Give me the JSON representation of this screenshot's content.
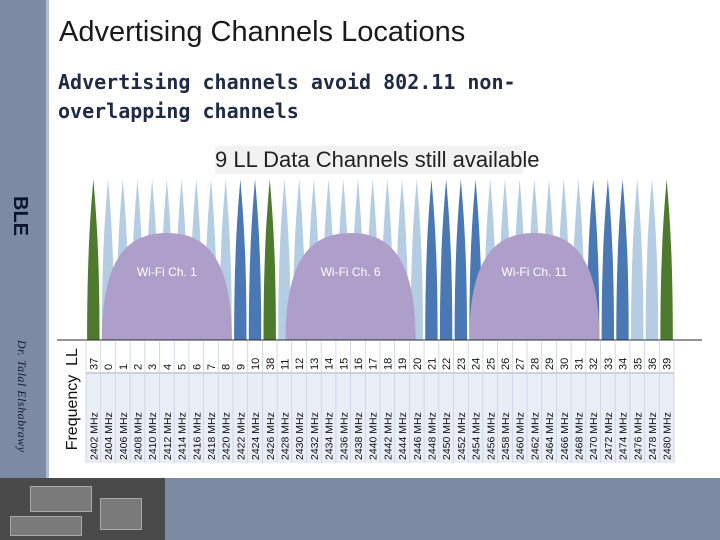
{
  "slide": {
    "title": "Advertising Channels Locations",
    "subtitle": "Advertising channels avoid 802.11 non-overlapping channels",
    "side_label": "BLE",
    "author": "Dr. Talal Elshabrawy"
  },
  "figure": {
    "caption": "9 LL Data Channels still available",
    "wifi_channels": [
      {
        "label": "Wi-Fi Ch. 1",
        "center_mhz": 2412
      },
      {
        "label": "Wi-Fi Ch. 6",
        "center_mhz": 2437
      },
      {
        "label": "Wi-Fi Ch. 11",
        "center_mhz": 2462
      }
    ],
    "ll_header": "LL",
    "freq_header": "Frequency",
    "ll_channels": [
      "37",
      "0",
      "1",
      "2",
      "3",
      "4",
      "5",
      "6",
      "7",
      "8",
      "9",
      "10",
      "38",
      "11",
      "12",
      "13",
      "14",
      "15",
      "16",
      "17",
      "18",
      "19",
      "20",
      "21",
      "22",
      "23",
      "24",
      "25",
      "26",
      "27",
      "28",
      "29",
      "30",
      "31",
      "32",
      "33",
      "34",
      "35",
      "36",
      "39"
    ],
    "frequencies": [
      "2402 MHz",
      "2404 MHz",
      "2406 MHz",
      "2408 MHz",
      "2410 MHz",
      "2412 MHz",
      "2414 MHz",
      "2416 MHz",
      "2418 MHz",
      "2420 MHz",
      "2422 MHz",
      "2424 MHz",
      "2426 MHz",
      "2428 MHz",
      "2430 MHz",
      "2432 MHz",
      "2434 MHz",
      "2436 MHz",
      "2438 MHz",
      "2440 MHz",
      "2442 MHz",
      "2444 MHz",
      "2446 MHz",
      "2448 MHz",
      "2450 MHz",
      "2452 MHz",
      "2454 MHz",
      "2456 MHz",
      "2458 MHz",
      "2460 MHz",
      "2462 MHz",
      "2464 MHz",
      "2466 MHz",
      "2468 MHz",
      "2470 MHz",
      "2472 MHz",
      "2474 MHz",
      "2476 MHz",
      "2478 MHz",
      "2480 MHz"
    ],
    "advertising_channels": [
      "37",
      "38",
      "39"
    ],
    "available_data_channels": [
      "9",
      "10",
      "21",
      "22",
      "23",
      "24",
      "32",
      "33",
      "34"
    ],
    "colors": {
      "advertising": "#4e7a2e",
      "available_data": "#4a78b4",
      "overlapped_data": "#b5cde3",
      "wifi": "#ad9fc9",
      "table_alt": "#e9eef6"
    }
  }
}
